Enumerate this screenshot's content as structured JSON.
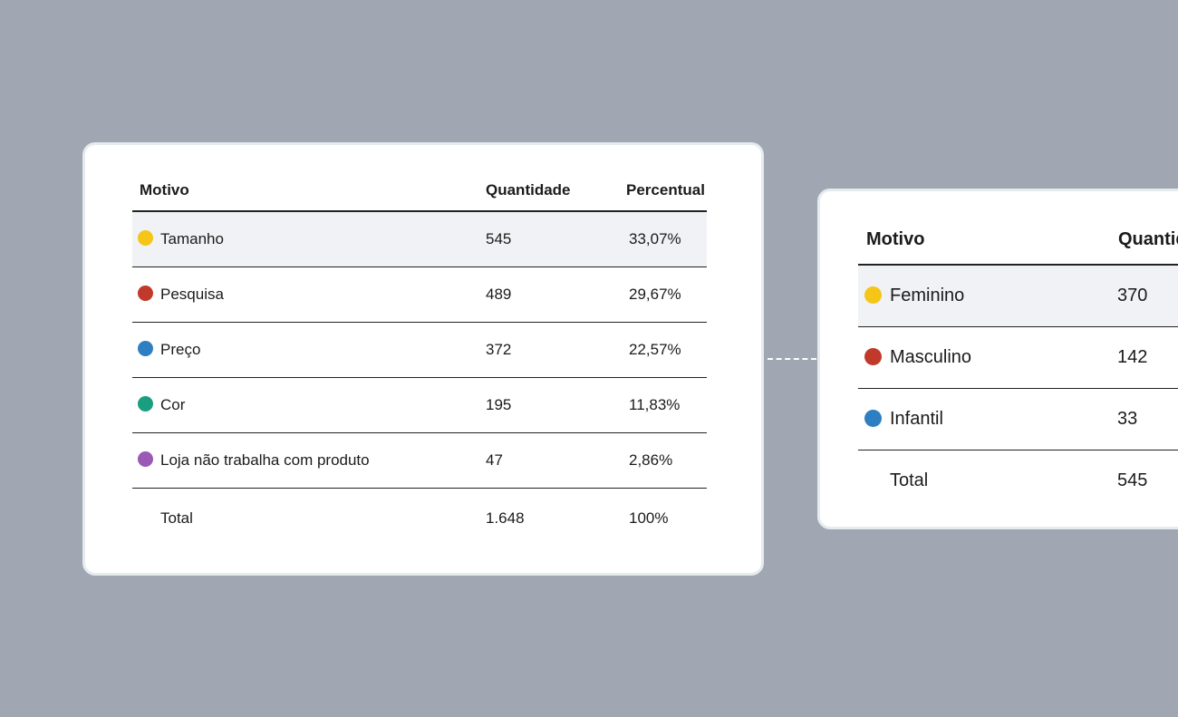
{
  "tables": [
    {
      "header": [
        "Motivo",
        "Quantidade",
        "Percentual"
      ],
      "rows": [
        [
          "Tamanho",
          "545",
          "33,07%"
        ],
        [
          "Pesquisa",
          "489",
          "29,67%"
        ],
        [
          "Preço",
          "372",
          "22,57%"
        ],
        [
          "Cor",
          "195",
          "11,83%"
        ],
        [
          "Loja não trabalha com produto",
          "47",
          "2,86%"
        ]
      ],
      "total": [
        "Total",
        "1.648",
        "100%"
      ]
    },
    {
      "header": [
        "Motivo",
        "Quantidade"
      ],
      "rows": [
        [
          "Feminino",
          "370"
        ],
        [
          "Masculino",
          "142"
        ],
        [
          "Infantil",
          "33"
        ]
      ],
      "total": [
        "Total",
        "545"
      ]
    }
  ]
}
